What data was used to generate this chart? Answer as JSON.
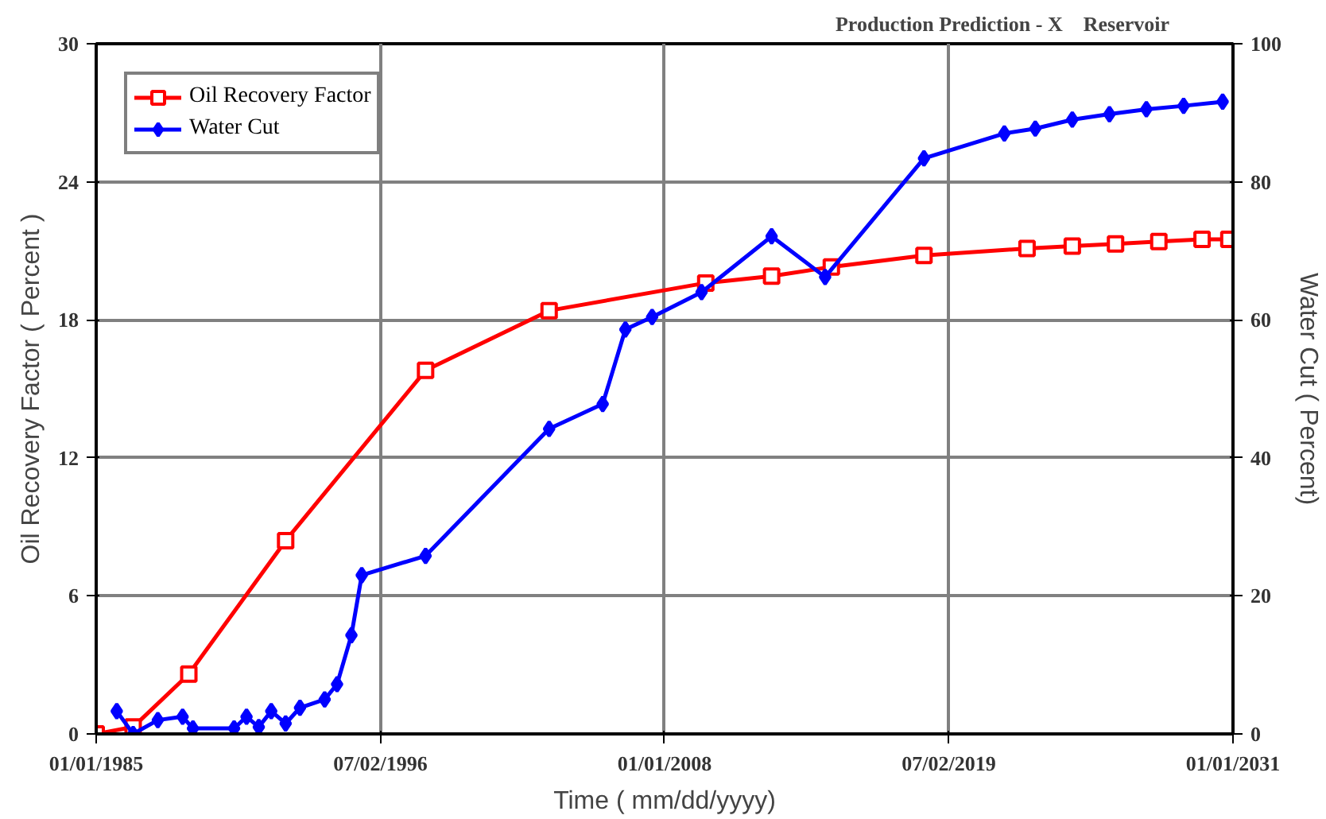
{
  "chart_data": {
    "type": "line",
    "title": "Production Prediction - X   Reservoir",
    "xlabel": "Time ( mm/dd/yyyy)",
    "ylabel": "Oil Recovery Factor ( Percent )",
    "y2label": "Water Cut ( Percent)",
    "xlim": [
      "1985-01-01",
      "2031-01-01"
    ],
    "xticks": [
      {
        "value": "1985-01-01",
        "label": "01/01/1985"
      },
      {
        "value": "1996-07-02",
        "label": "07/02/1996"
      },
      {
        "value": "2008-01-01",
        "label": "01/01/2008"
      },
      {
        "value": "2019-07-02",
        "label": "07/02/2019"
      },
      {
        "value": "2031-01-01",
        "label": "01/01/2031"
      }
    ],
    "ylim": [
      0,
      30
    ],
    "yticks": [
      0,
      6,
      12,
      18,
      24,
      30
    ],
    "y2lim": [
      0,
      100
    ],
    "y2ticks": [
      0,
      20,
      40,
      60,
      80,
      100
    ],
    "grid": true,
    "legend": "top left",
    "series": [
      {
        "name": "Oil Recovery Factor",
        "color": "#ff0000",
        "marker": "square",
        "x": [
          "1985-01",
          "1986-07",
          "1988-10",
          "1992-09",
          "1998-05",
          "2003-05",
          "2009-09",
          "2012-05",
          "2014-10",
          "2018-07",
          "2022-09",
          "2024-07",
          "2026-04",
          "2028-01",
          "2029-10",
          "2030-11"
        ],
        "values": [
          0,
          0.3,
          2.6,
          8.4,
          15.8,
          18.4,
          19.6,
          19.9,
          20.3,
          20.8,
          21.1,
          21.2,
          21.3,
          21.4,
          21.5,
          21.5
        ]
      },
      {
        "name": "Water Cut",
        "color": "#0000ff",
        "marker": "diamond",
        "axis": "y2",
        "x": [
          "1985-11",
          "1986-07",
          "1987-07",
          "1988-07",
          "1988-12",
          "1990-08",
          "1991-02",
          "1991-08",
          "1992-02",
          "1992-09",
          "1993-04",
          "1994-04",
          "1994-10",
          "1995-05",
          "1995-10",
          "1998-05",
          "2003-05",
          "2005-07",
          "2006-06",
          "2007-07",
          "2009-07",
          "2012-05",
          "2014-07",
          "2018-07",
          "2021-10",
          "2023-01",
          "2024-07",
          "2026-01",
          "2027-07",
          "2029-01",
          "2030-08"
        ],
        "values": [
          3.3,
          0,
          2,
          2.5,
          0.8,
          0.8,
          2.5,
          1,
          3.3,
          1.5,
          3.8,
          5,
          7.2,
          14.3,
          23,
          25.8,
          44.2,
          47.8,
          58.6,
          60.4,
          64,
          72.1,
          66.2,
          83.4,
          87,
          87.7,
          89,
          89.8,
          90.5,
          91,
          91.6
        ]
      }
    ]
  }
}
